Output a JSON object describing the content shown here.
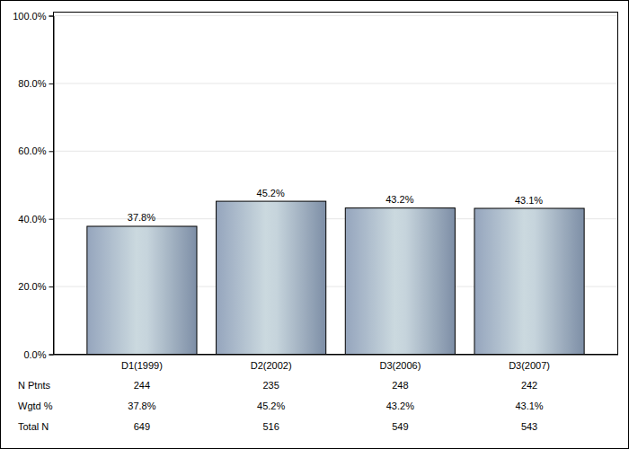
{
  "chart_data": {
    "type": "bar",
    "categories": [
      "D1(1999)",
      "D2(2002)",
      "D3(2006)",
      "D3(2007)"
    ],
    "values": [
      37.8,
      45.2,
      43.2,
      43.1
    ],
    "value_labels": [
      "37.8%",
      "45.2%",
      "43.2%",
      "43.1%"
    ],
    "data_labels": true,
    "grid": true,
    "ylim": [
      0,
      100
    ],
    "yticks": [
      {
        "value": 0,
        "label": "0.0%"
      },
      {
        "value": 20,
        "label": "20.0%"
      },
      {
        "value": 40,
        "label": "40.0%"
      },
      {
        "value": 60,
        "label": "60.0%"
      },
      {
        "value": 80,
        "label": "80.0%"
      },
      {
        "value": 100,
        "label": "100.0%"
      }
    ],
    "table": {
      "rows": [
        {
          "label": "N Ptnts",
          "values": [
            244,
            235,
            248,
            242
          ]
        },
        {
          "label": "Wgtd %",
          "values": [
            "37.8%",
            "45.2%",
            "43.2%",
            "43.1%"
          ]
        },
        {
          "label": "Total N",
          "values": [
            649,
            516,
            549,
            543
          ]
        }
      ]
    }
  }
}
